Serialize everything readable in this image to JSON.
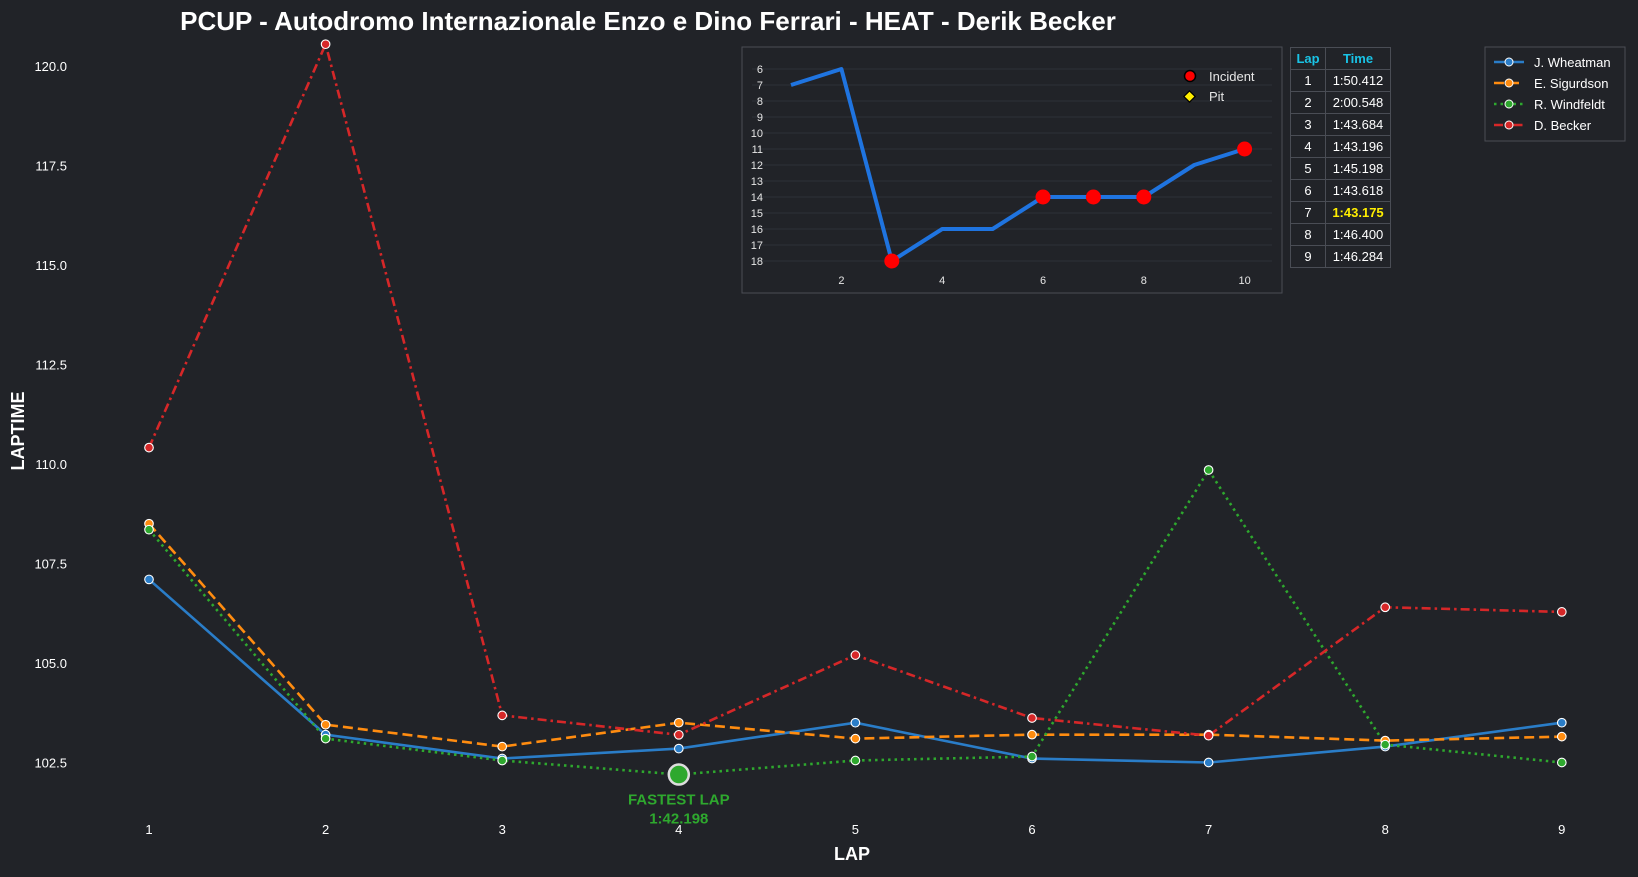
{
  "title": "PCUP - Autodromo Internazionale Enzo e Dino Ferrari - HEAT - Derik Becker",
  "colors": {
    "background": "#212328",
    "wheatman": "#2a7dc8",
    "sigurdson": "#ff8c10",
    "windfeldt": "#2ea82e",
    "becker": "#d62728",
    "position_line": "#1f74e0",
    "incident": "#ff0000",
    "pit": "#ffee00",
    "table_header": "#19c3e6",
    "fastest_time": "#ffee00"
  },
  "chart_data": [
    {
      "type": "line",
      "xlabel": "LAP",
      "ylabel": "LAPTIME",
      "x": [
        1,
        2,
        3,
        4,
        5,
        6,
        7,
        8,
        9
      ],
      "ylim": [
        101.5,
        120.6
      ],
      "yticks": [
        102.5,
        105.0,
        107.5,
        110.0,
        112.5,
        115.0,
        117.5,
        120.0
      ],
      "ytick_labels": [
        "102.5",
        "105.0",
        "107.5",
        "110.0",
        "112.5",
        "115.0",
        "117.5",
        "120.0"
      ],
      "xtick_labels": [
        "1",
        "2",
        "3",
        "4",
        "5",
        "6",
        "7",
        "8",
        "9"
      ],
      "series": [
        {
          "name": "J. Wheatman",
          "style": "solid",
          "colorKey": "wheatman",
          "values": [
            107.1,
            103.2,
            102.6,
            102.85,
            103.5,
            102.6,
            102.5,
            102.9,
            103.5
          ]
        },
        {
          "name": "E. Sigurdson",
          "style": "dashed",
          "colorKey": "sigurdson",
          "values": [
            108.5,
            103.45,
            102.9,
            103.5,
            103.1,
            103.2,
            103.2,
            103.05,
            103.15
          ]
        },
        {
          "name": "R. Windfeldt",
          "style": "dotted",
          "colorKey": "windfeldt",
          "values": [
            108.35,
            103.1,
            102.55,
            102.198,
            102.55,
            102.65,
            109.85,
            102.95,
            102.5
          ]
        },
        {
          "name": "D. Becker",
          "style": "dashdot",
          "colorKey": "becker",
          "values": [
            110.412,
            120.548,
            103.684,
            103.196,
            105.198,
            103.618,
            103.175,
            106.4,
            106.284
          ]
        }
      ],
      "annotation": {
        "label": "FASTEST LAP",
        "value_label": "1:42.198",
        "x": 4,
        "y": 102.198
      },
      "legend": "top-right"
    },
    {
      "type": "line",
      "x": [
        1,
        2,
        3,
        4,
        5,
        6,
        7,
        8,
        9,
        10
      ],
      "positions": [
        7,
        6,
        18,
        16,
        16,
        14,
        14,
        14,
        12,
        11
      ],
      "incident_laps": [
        3,
        6,
        7,
        8,
        10
      ],
      "pit_laps": [],
      "yticks": [
        6,
        7,
        8,
        9,
        10,
        11,
        12,
        13,
        14,
        15,
        16,
        17,
        18
      ],
      "xticks": [
        2,
        4,
        6,
        8,
        10
      ],
      "xlim": [
        0.5,
        10.5
      ],
      "ylim": [
        18.9,
        5.0
      ],
      "legend": [
        {
          "label": "Incident",
          "kind": "incident"
        },
        {
          "label": "Pit",
          "kind": "pit"
        }
      ]
    },
    {
      "type": "table",
      "headers": [
        "Lap",
        "Time"
      ],
      "rows": [
        [
          "1",
          "1:50.412"
        ],
        [
          "2",
          "2:00.548"
        ],
        [
          "3",
          "1:43.684"
        ],
        [
          "4",
          "1:43.196"
        ],
        [
          "5",
          "1:45.198"
        ],
        [
          "6",
          "1:43.618"
        ],
        [
          "7",
          "1:43.175"
        ],
        [
          "8",
          "1:46.400"
        ],
        [
          "9",
          "1:46.284"
        ]
      ],
      "fastest_row": 7
    }
  ]
}
